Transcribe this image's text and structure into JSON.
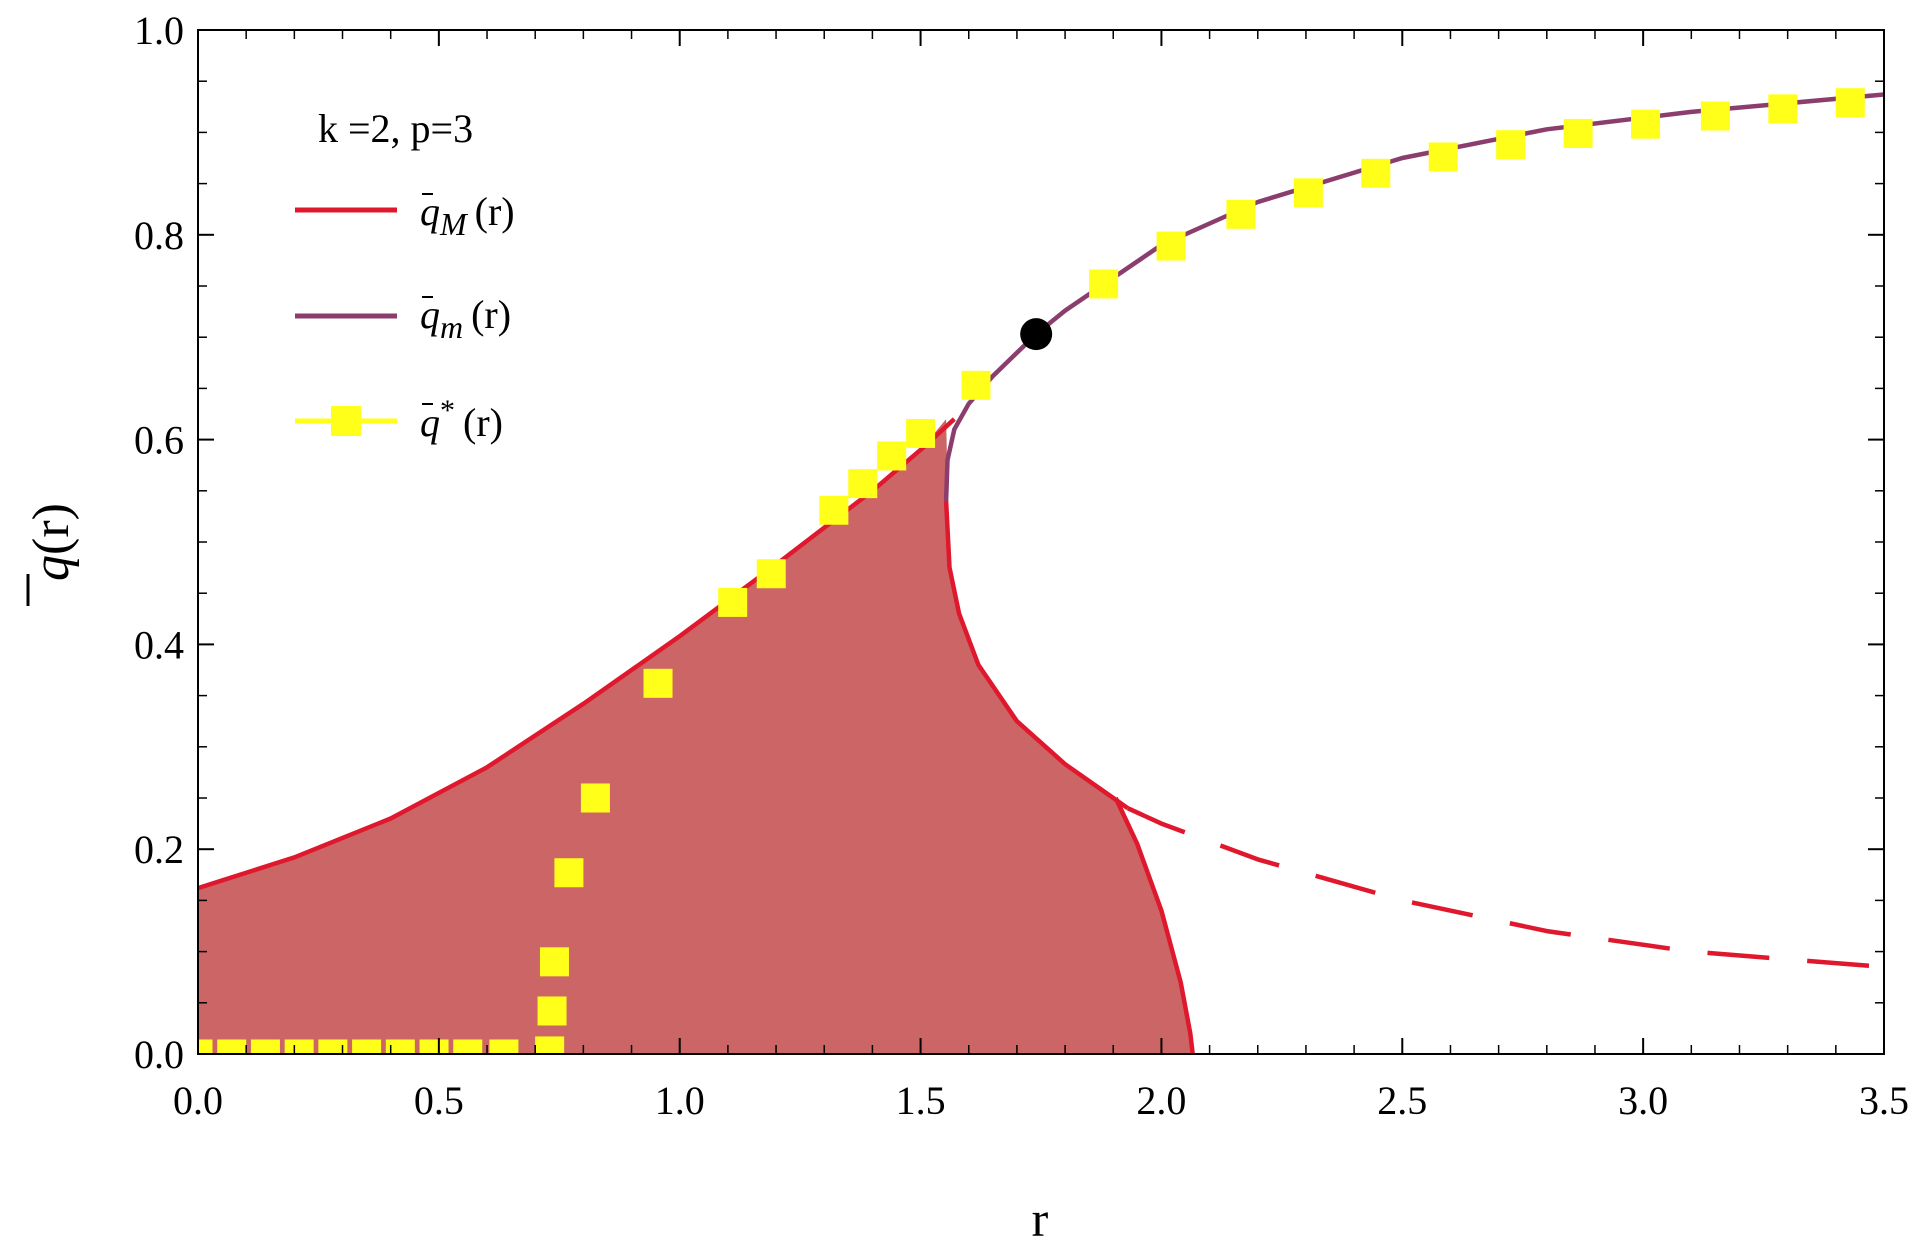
{
  "chart_data": {
    "type": "line",
    "annotation": "k =2, p=3",
    "xlabel": "r",
    "ylabel_base": "q",
    "ylabel_rest": "(r)",
    "xlim": [
      0,
      3.5
    ],
    "ylim": [
      0,
      1.0
    ],
    "x_ticks": [
      "0.0",
      "0.5",
      "1.0",
      "1.5",
      "2.0",
      "2.5",
      "3.0",
      "3.5"
    ],
    "y_ticks": [
      "0.0",
      "0.2",
      "0.4",
      "0.6",
      "0.8",
      "1.0"
    ],
    "legend": {
      "placement": "top-left",
      "entries": [
        {
          "base": "q",
          "sub": "M",
          "sup": "",
          "rest": "(r)",
          "color": "#e0182d",
          "marker": "line"
        },
        {
          "base": "q",
          "sub": "m",
          "sup": "",
          "rest": "(r)",
          "color": "#8b3e6e",
          "marker": "line"
        },
        {
          "base": "q",
          "sub": "",
          "sup": "*",
          "rest": "(r)",
          "color": "#ffff1a",
          "marker": "square"
        }
      ]
    },
    "series": [
      {
        "key": "qM_upper",
        "color": "#e0182d",
        "style": "solid",
        "x": [
          0,
          0.2,
          0.4,
          0.6,
          0.8,
          1.0,
          1.2,
          1.4,
          1.5,
          1.57
        ],
        "y": [
          0.162,
          0.192,
          0.23,
          0.28,
          0.342,
          0.408,
          0.478,
          0.55,
          0.59,
          0.62
        ]
      },
      {
        "key": "qM_lower_branch",
        "color": "#e0182d",
        "style": "solid",
        "x": [
          1.553,
          1.56,
          1.58,
          1.62,
          1.7,
          1.8,
          1.9,
          1.93
        ],
        "y": [
          0.54,
          0.475,
          0.43,
          0.38,
          0.325,
          0.283,
          0.25,
          0.24
        ]
      },
      {
        "key": "qM_dashed_tail",
        "color": "#e0182d",
        "style": "dashed",
        "x": [
          1.93,
          2.0,
          2.2,
          2.5,
          2.8,
          3.1,
          3.5
        ],
        "y": [
          0.24,
          0.225,
          0.19,
          0.15,
          0.12,
          0.1,
          0.085
        ]
      },
      {
        "key": "q_boundary_drop",
        "color": "#e0182d",
        "style": "solid",
        "x": [
          1.905,
          1.95,
          2.0,
          2.04,
          2.06,
          2.065
        ],
        "y": [
          0.25,
          0.205,
          0.14,
          0.07,
          0.02,
          0.0
        ]
      },
      {
        "key": "qm",
        "color": "#8b3e6e",
        "style": "solid",
        "x": [
          1.553,
          1.556,
          1.57,
          1.6,
          1.65,
          1.74,
          1.8,
          2.0,
          2.2,
          2.5,
          2.8,
          3.1,
          3.5
        ],
        "y": [
          0.54,
          0.58,
          0.61,
          0.635,
          0.662,
          0.703,
          0.726,
          0.79,
          0.832,
          0.875,
          0.903,
          0.92,
          0.937
        ]
      }
    ],
    "shaded_region": {
      "color": "#cc6666",
      "x": [
        0,
        0.2,
        0.4,
        0.6,
        0.8,
        1.0,
        1.2,
        1.4,
        1.5,
        1.553,
        1.56,
        1.58,
        1.62,
        1.7,
        1.8,
        1.905,
        1.95,
        2.0,
        2.04,
        2.06,
        2.065,
        0
      ],
      "y": [
        0.162,
        0.192,
        0.23,
        0.28,
        0.342,
        0.408,
        0.478,
        0.55,
        0.59,
        0.62,
        0.475,
        0.43,
        0.38,
        0.325,
        0.283,
        0.25,
        0.205,
        0.14,
        0.07,
        0.02,
        0.0,
        0.0
      ]
    },
    "q_star_points": {
      "x": [
        0.0,
        0.07,
        0.14,
        0.21,
        0.28,
        0.35,
        0.42,
        0.49,
        0.56,
        0.635,
        0.73,
        0.735,
        0.74,
        0.77,
        0.825,
        0.955,
        1.11,
        1.19,
        1.32,
        1.38,
        1.44,
        1.5,
        1.615,
        1.88,
        2.02,
        2.165,
        2.305,
        2.445,
        2.585,
        2.725,
        2.865,
        3.005,
        3.15,
        3.29,
        3.43
      ],
      "y": [
        0.0,
        0.0,
        0.0,
        0.0,
        0.0,
        0.0,
        0.0,
        0.0,
        0.0,
        0.0,
        0.003,
        0.042,
        0.09,
        0.177,
        0.25,
        0.362,
        0.441,
        0.469,
        0.531,
        0.557,
        0.584,
        0.606,
        0.653,
        0.752,
        0.789,
        0.82,
        0.841,
        0.86,
        0.876,
        0.888,
        0.899,
        0.908,
        0.916,
        0.923,
        0.929
      ]
    },
    "critical_point": {
      "x": 1.74,
      "y": 0.703,
      "color": "#000000"
    },
    "grid": false
  }
}
